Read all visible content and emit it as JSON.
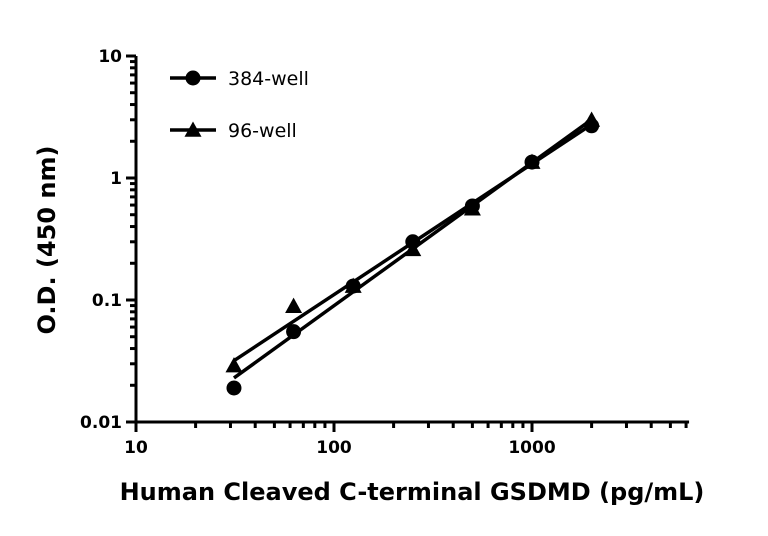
{
  "chart_data": {
    "type": "scatter",
    "title": "",
    "xlabel": "Human Cleaved C-terminal GSDMD (pg/mL)",
    "ylabel": "O.D. (450 nm)",
    "xscale": "log",
    "yscale": "log",
    "xlim": [
      10,
      6000
    ],
    "ylim": [
      0.01,
      10
    ],
    "x_ticks": [
      "10",
      "100",
      "1000"
    ],
    "y_ticks": [
      "0.01",
      "0.1",
      "1",
      "10"
    ],
    "grid": false,
    "legend_position": "top-left",
    "x": [
      31.25,
      62.5,
      125,
      250,
      500,
      1000,
      2000
    ],
    "series": [
      {
        "name": "384-well",
        "marker": "circle",
        "values": [
          0.019,
          0.055,
          0.13,
          0.3,
          0.59,
          1.35,
          2.68
        ],
        "fit": "power-law line"
      },
      {
        "name": "96-well",
        "marker": "triangle",
        "values": [
          0.029,
          0.089,
          0.13,
          0.26,
          0.56,
          1.35,
          2.99
        ],
        "fit": "power-law line"
      }
    ],
    "colors": {
      "series": "#000000"
    }
  }
}
